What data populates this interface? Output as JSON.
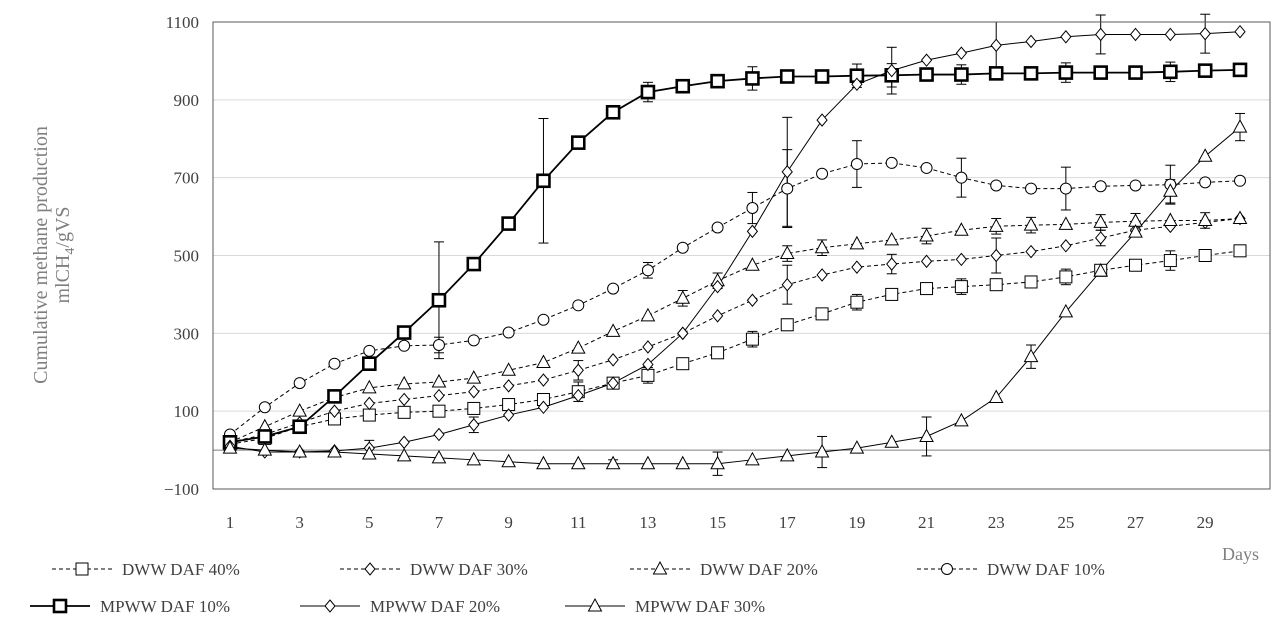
{
  "chart_data": {
    "type": "line",
    "title": "",
    "ylabel": "Cumulative methane production mlCH4/gVS",
    "ylabel_lines": [
      "Cumulative methane production",
      "mlCH",
      "4",
      "/gVS"
    ],
    "xlabel": "Days",
    "xlim": [
      1,
      30
    ],
    "ylim": [
      -100,
      1100
    ],
    "x_ticks": [
      1,
      3,
      5,
      7,
      9,
      11,
      13,
      15,
      17,
      19,
      21,
      23,
      25,
      27,
      29
    ],
    "y_ticks": [
      -100,
      100,
      300,
      500,
      700,
      900,
      1100
    ],
    "y_tick_labels": [
      "−100",
      "100",
      "300",
      "500",
      "700",
      "900",
      "1100"
    ],
    "grid": "horizontal",
    "legend_position": "bottom",
    "x": [
      1,
      2,
      3,
      4,
      5,
      6,
      7,
      8,
      9,
      10,
      11,
      12,
      13,
      14,
      15,
      16,
      17,
      18,
      19,
      20,
      21,
      22,
      23,
      24,
      25,
      26,
      27,
      28,
      29,
      30
    ],
    "series": [
      {
        "name": "DWW DAF 40%",
        "marker": "square",
        "line": "dashed",
        "values": [
          15,
          30,
          60,
          80,
          90,
          97,
          100,
          107,
          117,
          130,
          150,
          172,
          192,
          222,
          250,
          285,
          322,
          350,
          380,
          400,
          415,
          420,
          425,
          432,
          445,
          462,
          475,
          487,
          500,
          512
        ],
        "errors": [
          0,
          0,
          0,
          8,
          0,
          0,
          10,
          10,
          8,
          15,
          25,
          0,
          20,
          0,
          0,
          20,
          15,
          0,
          20,
          0,
          0,
          20,
          0,
          0,
          20,
          0,
          0,
          25,
          0,
          0
        ]
      },
      {
        "name": "DWW DAF 30%",
        "marker": "diamond",
        "line": "dashed",
        "values": [
          20,
          40,
          70,
          100,
          120,
          130,
          140,
          150,
          165,
          180,
          205,
          232,
          265,
          300,
          345,
          385,
          425,
          450,
          470,
          478,
          485,
          490,
          500,
          510,
          525,
          545,
          565,
          575,
          585,
          595
        ],
        "errors": [
          0,
          0,
          0,
          0,
          0,
          0,
          0,
          0,
          0,
          0,
          25,
          0,
          0,
          0,
          0,
          0,
          50,
          0,
          0,
          25,
          0,
          0,
          45,
          0,
          0,
          20,
          0,
          0,
          0,
          0
        ]
      },
      {
        "name": "DWW DAF 20%",
        "marker": "triangle",
        "line": "dashed",
        "values": [
          20,
          60,
          100,
          135,
          160,
          170,
          175,
          185,
          205,
          225,
          262,
          305,
          345,
          390,
          435,
          475,
          505,
          520,
          530,
          540,
          550,
          565,
          575,
          578,
          580,
          585,
          588,
          590,
          590,
          595
        ],
        "errors": [
          0,
          0,
          0,
          0,
          0,
          0,
          0,
          0,
          0,
          0,
          0,
          0,
          0,
          20,
          20,
          0,
          20,
          20,
          0,
          0,
          20,
          0,
          20,
          20,
          0,
          20,
          20,
          0,
          20,
          0
        ]
      },
      {
        "name": "DWW DAF 10%",
        "marker": "circle",
        "line": "dashed",
        "values": [
          40,
          110,
          172,
          222,
          255,
          268,
          270,
          282,
          302,
          335,
          372,
          415,
          462,
          520,
          572,
          622,
          672,
          710,
          735,
          738,
          725,
          700,
          680,
          672,
          672,
          678,
          680,
          682,
          688,
          692
        ],
        "errors": [
          0,
          0,
          0,
          0,
          0,
          0,
          20,
          0,
          0,
          0,
          0,
          0,
          20,
          0,
          0,
          40,
          100,
          0,
          60,
          0,
          0,
          50,
          0,
          0,
          55,
          0,
          0,
          50,
          0,
          0
        ]
      },
      {
        "name": "MPWW DAF 10%",
        "marker": "square-bold",
        "line": "solid",
        "values": [
          20,
          35,
          60,
          138,
          222,
          302,
          385,
          478,
          582,
          692,
          790,
          868,
          920,
          935,
          948,
          955,
          960,
          960,
          962,
          963,
          965,
          965,
          968,
          968,
          970,
          970,
          970,
          972,
          975,
          977
        ],
        "errors": [
          0,
          0,
          0,
          0,
          0,
          0,
          150,
          0,
          0,
          160,
          0,
          0,
          25,
          0,
          0,
          30,
          0,
          0,
          30,
          30,
          0,
          25,
          0,
          0,
          25,
          0,
          0,
          25,
          0,
          0
        ]
      },
      {
        "name": "MPWW DAF 20%",
        "marker": "diamond",
        "line": "solid",
        "values": [
          10,
          -5,
          -5,
          -2,
          5,
          20,
          40,
          65,
          90,
          110,
          140,
          172,
          220,
          300,
          420,
          562,
          715,
          848,
          940,
          975,
          1002,
          1020,
          1040,
          1050,
          1062,
          1068,
          1068,
          1068,
          1070,
          1075
        ],
        "errors": [
          0,
          0,
          0,
          0,
          20,
          0,
          0,
          20,
          0,
          0,
          0,
          0,
          0,
          0,
          0,
          0,
          140,
          0,
          0,
          60,
          0,
          0,
          60,
          0,
          0,
          50,
          0,
          0,
          50,
          0
        ]
      },
      {
        "name": "MPWW DAF 30%",
        "marker": "triangle",
        "line": "solid",
        "values": [
          5,
          0,
          -5,
          -5,
          -10,
          -15,
          -20,
          -25,
          -30,
          -35,
          -35,
          -35,
          -35,
          -35,
          -35,
          -25,
          -15,
          -5,
          5,
          20,
          35,
          75,
          135,
          240,
          355,
          460,
          560,
          665,
          755,
          830
        ],
        "errors": [
          0,
          0,
          0,
          0,
          0,
          0,
          0,
          0,
          0,
          0,
          0,
          10,
          0,
          0,
          30,
          0,
          0,
          40,
          0,
          0,
          50,
          0,
          0,
          30,
          0,
          0,
          0,
          30,
          0,
          35
        ]
      }
    ]
  }
}
